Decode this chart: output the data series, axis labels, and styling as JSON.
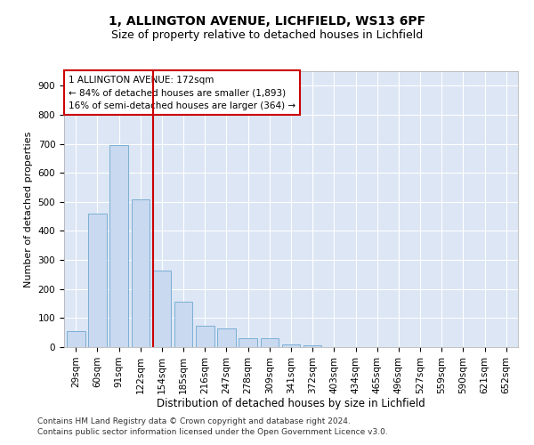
{
  "title1": "1, ALLINGTON AVENUE, LICHFIELD, WS13 6PF",
  "title2": "Size of property relative to detached houses in Lichfield",
  "xlabel": "Distribution of detached houses by size in Lichfield",
  "ylabel": "Number of detached properties",
  "footnote1": "Contains HM Land Registry data © Crown copyright and database right 2024.",
  "footnote2": "Contains public sector information licensed under the Open Government Licence v3.0.",
  "categories": [
    "29sqm",
    "60sqm",
    "91sqm",
    "122sqm",
    "154sqm",
    "185sqm",
    "216sqm",
    "247sqm",
    "278sqm",
    "309sqm",
    "341sqm",
    "372sqm",
    "403sqm",
    "434sqm",
    "465sqm",
    "496sqm",
    "527sqm",
    "559sqm",
    "590sqm",
    "621sqm",
    "652sqm"
  ],
  "values": [
    55,
    460,
    695,
    510,
    265,
    155,
    75,
    65,
    30,
    30,
    10,
    5,
    0,
    0,
    0,
    0,
    0,
    0,
    0,
    0,
    0
  ],
  "bar_color": "#c9d9f0",
  "bar_edge_color": "#7bafd4",
  "vline_x": 3.58,
  "annotation_text": "1 ALLINGTON AVENUE: 172sqm\n← 84% of detached houses are smaller (1,893)\n16% of semi-detached houses are larger (364) →",
  "annotation_box_facecolor": "#ffffff",
  "annotation_box_edgecolor": "#cc0000",
  "vline_color": "#cc0000",
  "background_color": "#dce6f5",
  "ylim": [
    0,
    950
  ],
  "yticks": [
    0,
    100,
    200,
    300,
    400,
    500,
    600,
    700,
    800,
    900
  ],
  "grid_color": "#ffffff",
  "title1_fontsize": 10,
  "title2_fontsize": 9,
  "xlabel_fontsize": 8.5,
  "ylabel_fontsize": 8,
  "tick_fontsize": 7.5,
  "footnote_fontsize": 6.5,
  "annotation_fontsize": 7.5
}
